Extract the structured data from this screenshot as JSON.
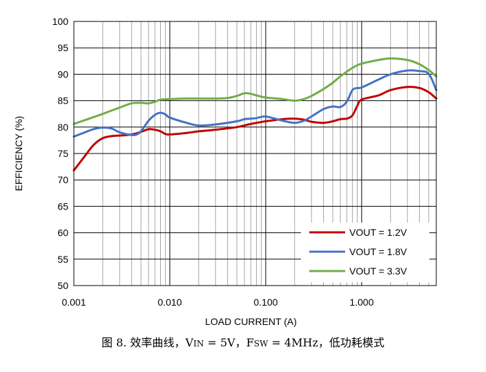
{
  "caption": {
    "prefix": "图 8. 效率曲线，V",
    "vin_sub": "IN",
    "mid": " = 5V，F",
    "fsw_sub": "SW",
    "suffix": " = 4MHz，低功耗模式"
  },
  "chart_data": {
    "type": "line",
    "xlabel": "LOAD CURRENT (A)",
    "ylabel": "EFFICIENCY (%)",
    "xscale": "log",
    "xlim": [
      0.001,
      6
    ],
    "ylim": [
      50,
      100
    ],
    "x_ticks": [
      0.001,
      0.01,
      0.1,
      1
    ],
    "x_tick_labels": [
      "0.001",
      "0.010",
      "0.100",
      "1.000"
    ],
    "y_ticks": [
      50,
      55,
      60,
      65,
      70,
      75,
      80,
      85,
      90,
      95,
      100
    ],
    "y_tick_labels": [
      "50",
      "55",
      "60",
      "65",
      "70",
      "75",
      "80",
      "85",
      "90",
      "95",
      "100"
    ],
    "grid": true,
    "legend_position": "bottom-right",
    "series": [
      {
        "name": "VOUT = 1.2V",
        "color": "#c00000",
        "x": [
          0.001,
          0.0013,
          0.0016,
          0.002,
          0.0025,
          0.003,
          0.004,
          0.005,
          0.006,
          0.007,
          0.008,
          0.009,
          0.01,
          0.015,
          0.02,
          0.03,
          0.05,
          0.07,
          0.1,
          0.15,
          0.2,
          0.25,
          0.3,
          0.4,
          0.5,
          0.6,
          0.7,
          0.8,
          0.9,
          1.0,
          1.5,
          2.0,
          3.0,
          4.0,
          5.0,
          6.0
        ],
        "y": [
          71.8,
          74.5,
          76.6,
          77.9,
          78.3,
          78.4,
          78.6,
          79.1,
          79.6,
          79.5,
          79.2,
          78.7,
          78.6,
          78.9,
          79.2,
          79.5,
          80.0,
          80.6,
          81.1,
          81.5,
          81.6,
          81.4,
          81.0,
          80.8,
          81.1,
          81.5,
          81.6,
          82.2,
          84.0,
          85.2,
          86.0,
          87.0,
          87.6,
          87.4,
          86.6,
          85.4
        ]
      },
      {
        "name": "VOUT = 1.8V",
        "color": "#4472c4",
        "x": [
          0.001,
          0.0013,
          0.0016,
          0.002,
          0.0025,
          0.003,
          0.004,
          0.0045,
          0.005,
          0.006,
          0.007,
          0.008,
          0.009,
          0.01,
          0.015,
          0.02,
          0.03,
          0.05,
          0.06,
          0.07,
          0.08,
          0.1,
          0.15,
          0.2,
          0.25,
          0.3,
          0.4,
          0.5,
          0.6,
          0.7,
          0.8,
          0.9,
          1.0,
          1.5,
          2.0,
          3.0,
          4.0,
          5.0,
          6.0
        ],
        "y": [
          78.2,
          79.0,
          79.6,
          79.9,
          79.7,
          79.0,
          78.5,
          78.6,
          79.2,
          81.2,
          82.3,
          82.7,
          82.4,
          81.8,
          80.8,
          80.3,
          80.5,
          81.1,
          81.5,
          81.6,
          81.7,
          82.0,
          81.2,
          80.8,
          81.2,
          82.0,
          83.4,
          83.9,
          83.8,
          84.8,
          87.0,
          87.4,
          87.5,
          89.0,
          90.0,
          90.7,
          90.6,
          90.1,
          87.0
        ]
      },
      {
        "name": "VOUT = 3.3V",
        "color": "#70ad47",
        "x": [
          0.001,
          0.0015,
          0.002,
          0.003,
          0.004,
          0.005,
          0.006,
          0.007,
          0.008,
          0.01,
          0.015,
          0.02,
          0.03,
          0.04,
          0.05,
          0.06,
          0.07,
          0.08,
          0.1,
          0.15,
          0.2,
          0.25,
          0.3,
          0.4,
          0.5,
          0.6,
          0.8,
          1.0,
          1.5,
          2.0,
          3.0,
          4.0,
          5.0,
          6.0
        ],
        "y": [
          80.6,
          81.7,
          82.5,
          83.7,
          84.5,
          84.6,
          84.5,
          84.8,
          85.2,
          85.3,
          85.4,
          85.4,
          85.4,
          85.5,
          85.9,
          86.4,
          86.3,
          86.0,
          85.6,
          85.3,
          85.0,
          85.3,
          85.9,
          87.2,
          88.4,
          89.6,
          91.2,
          92.0,
          92.7,
          93.0,
          92.7,
          91.9,
          90.8,
          89.6
        ]
      }
    ]
  }
}
